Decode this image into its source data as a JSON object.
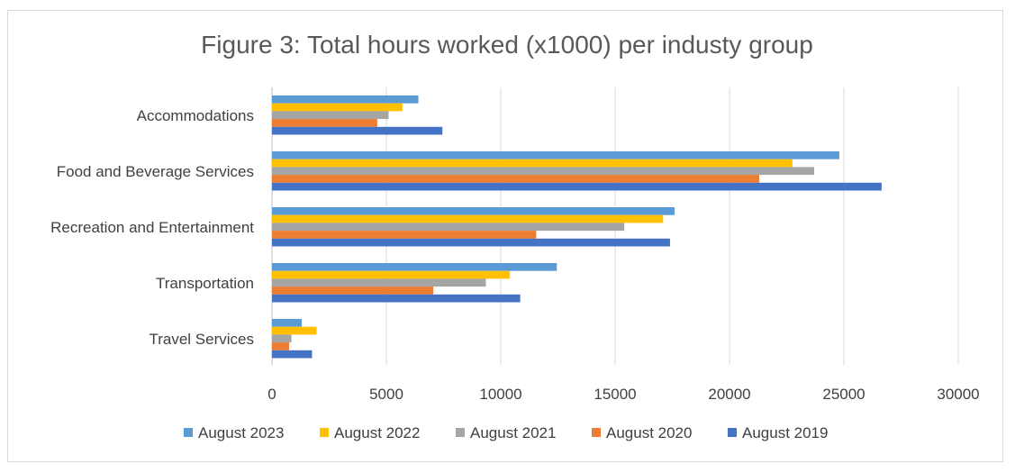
{
  "chart_data": {
    "type": "bar",
    "orientation": "horizontal",
    "title": "Figure 3: Total hours worked (x1000) per industy group",
    "xlabel": "",
    "ylabel": "",
    "xlim": [
      0,
      30000
    ],
    "x_ticks": [
      "0",
      "5000",
      "10000",
      "15000",
      "20000",
      "25000",
      "30000"
    ],
    "grid": true,
    "legend_position": "bottom",
    "categories": [
      "Accommodations",
      "Food and Beverage Services",
      "Recreation and Entertainment",
      "Transportation",
      "Travel Services"
    ],
    "series": [
      {
        "name": "August 2023",
        "color": "#5b9bd5",
        "values": [
          6400,
          24800,
          17600,
          12450,
          1300
        ]
      },
      {
        "name": "August 2022",
        "color": "#ffc000",
        "values": [
          5700,
          22750,
          17100,
          10400,
          1950
        ]
      },
      {
        "name": "August 2021",
        "color": "#a5a5a5",
        "values": [
          5100,
          23700,
          15400,
          9350,
          850
        ]
      },
      {
        "name": "August 2020",
        "color": "#ed7d31",
        "values": [
          4600,
          21300,
          11550,
          7050,
          750
        ]
      },
      {
        "name": "August 2019",
        "color": "#4472c4",
        "values": [
          7450,
          26650,
          17400,
          10850,
          1750
        ]
      }
    ]
  }
}
